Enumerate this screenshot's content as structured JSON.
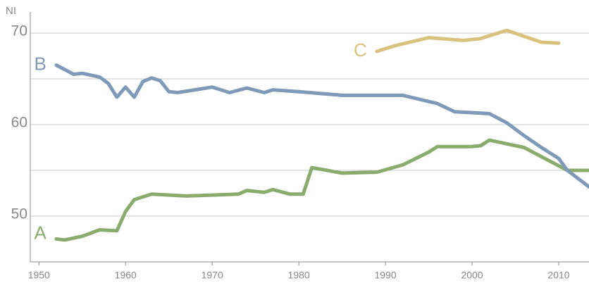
{
  "chart_data": {
    "type": "line",
    "ylabel": "NI",
    "xlim": [
      1949,
      2013.5
    ],
    "xticks": [
      1950,
      1960,
      1970,
      1980,
      1990,
      2000,
      2010
    ],
    "ylim": [
      45,
      72
    ],
    "yticks": [
      50,
      60,
      70
    ],
    "minor_yticks": [
      55,
      65
    ],
    "grid": true,
    "series": [
      {
        "name": "A",
        "color": "#8aab6e",
        "x": [
          1952,
          1953,
          1955,
          1957,
          1959,
          1960,
          1961,
          1963,
          1967,
          1970,
          1973,
          1974,
          1976,
          1977,
          1979,
          1980.5,
          1981.5,
          1985,
          1989,
          1992,
          1995,
          1996,
          2000,
          2001,
          2002,
          2006,
          2009,
          2011,
          2013.5
        ],
        "values": [
          47.5,
          47.4,
          47.8,
          48.5,
          48.4,
          50.5,
          51.8,
          52.4,
          52.2,
          52.3,
          52.4,
          52.8,
          52.6,
          52.9,
          52.4,
          52.4,
          55.3,
          54.7,
          54.8,
          55.6,
          57.0,
          57.6,
          57.6,
          57.7,
          58.3,
          57.5,
          56.0,
          55.0,
          55.0
        ]
      },
      {
        "name": "B",
        "color": "#7f9ab8",
        "x": [
          1952,
          1954,
          1955,
          1957,
          1958,
          1959,
          1960,
          1961,
          1962,
          1963,
          1964,
          1965,
          1966,
          1968,
          1970,
          1972,
          1974,
          1976,
          1977,
          1980,
          1985,
          1990,
          1992,
          1996,
          1998,
          2002,
          2004,
          2006,
          2008,
          2010,
          2011,
          2013.5
        ],
        "values": [
          66.5,
          65.5,
          65.6,
          65.2,
          64.5,
          63.0,
          64.1,
          63.0,
          64.7,
          65.1,
          64.8,
          63.6,
          63.5,
          63.8,
          64.1,
          63.5,
          64.0,
          63.5,
          63.8,
          63.6,
          63.2,
          63.2,
          63.2,
          62.3,
          61.4,
          61.2,
          60.2,
          58.8,
          57.5,
          56.3,
          55.0,
          53.2
        ]
      },
      {
        "name": "C",
        "color": "#d9c27e",
        "x": [
          1989,
          1991,
          1995,
          1999,
          2001,
          2004,
          2008,
          2010
        ],
        "values": [
          68.0,
          68.6,
          69.5,
          69.2,
          69.4,
          70.3,
          69.0,
          68.9
        ]
      }
    ]
  }
}
